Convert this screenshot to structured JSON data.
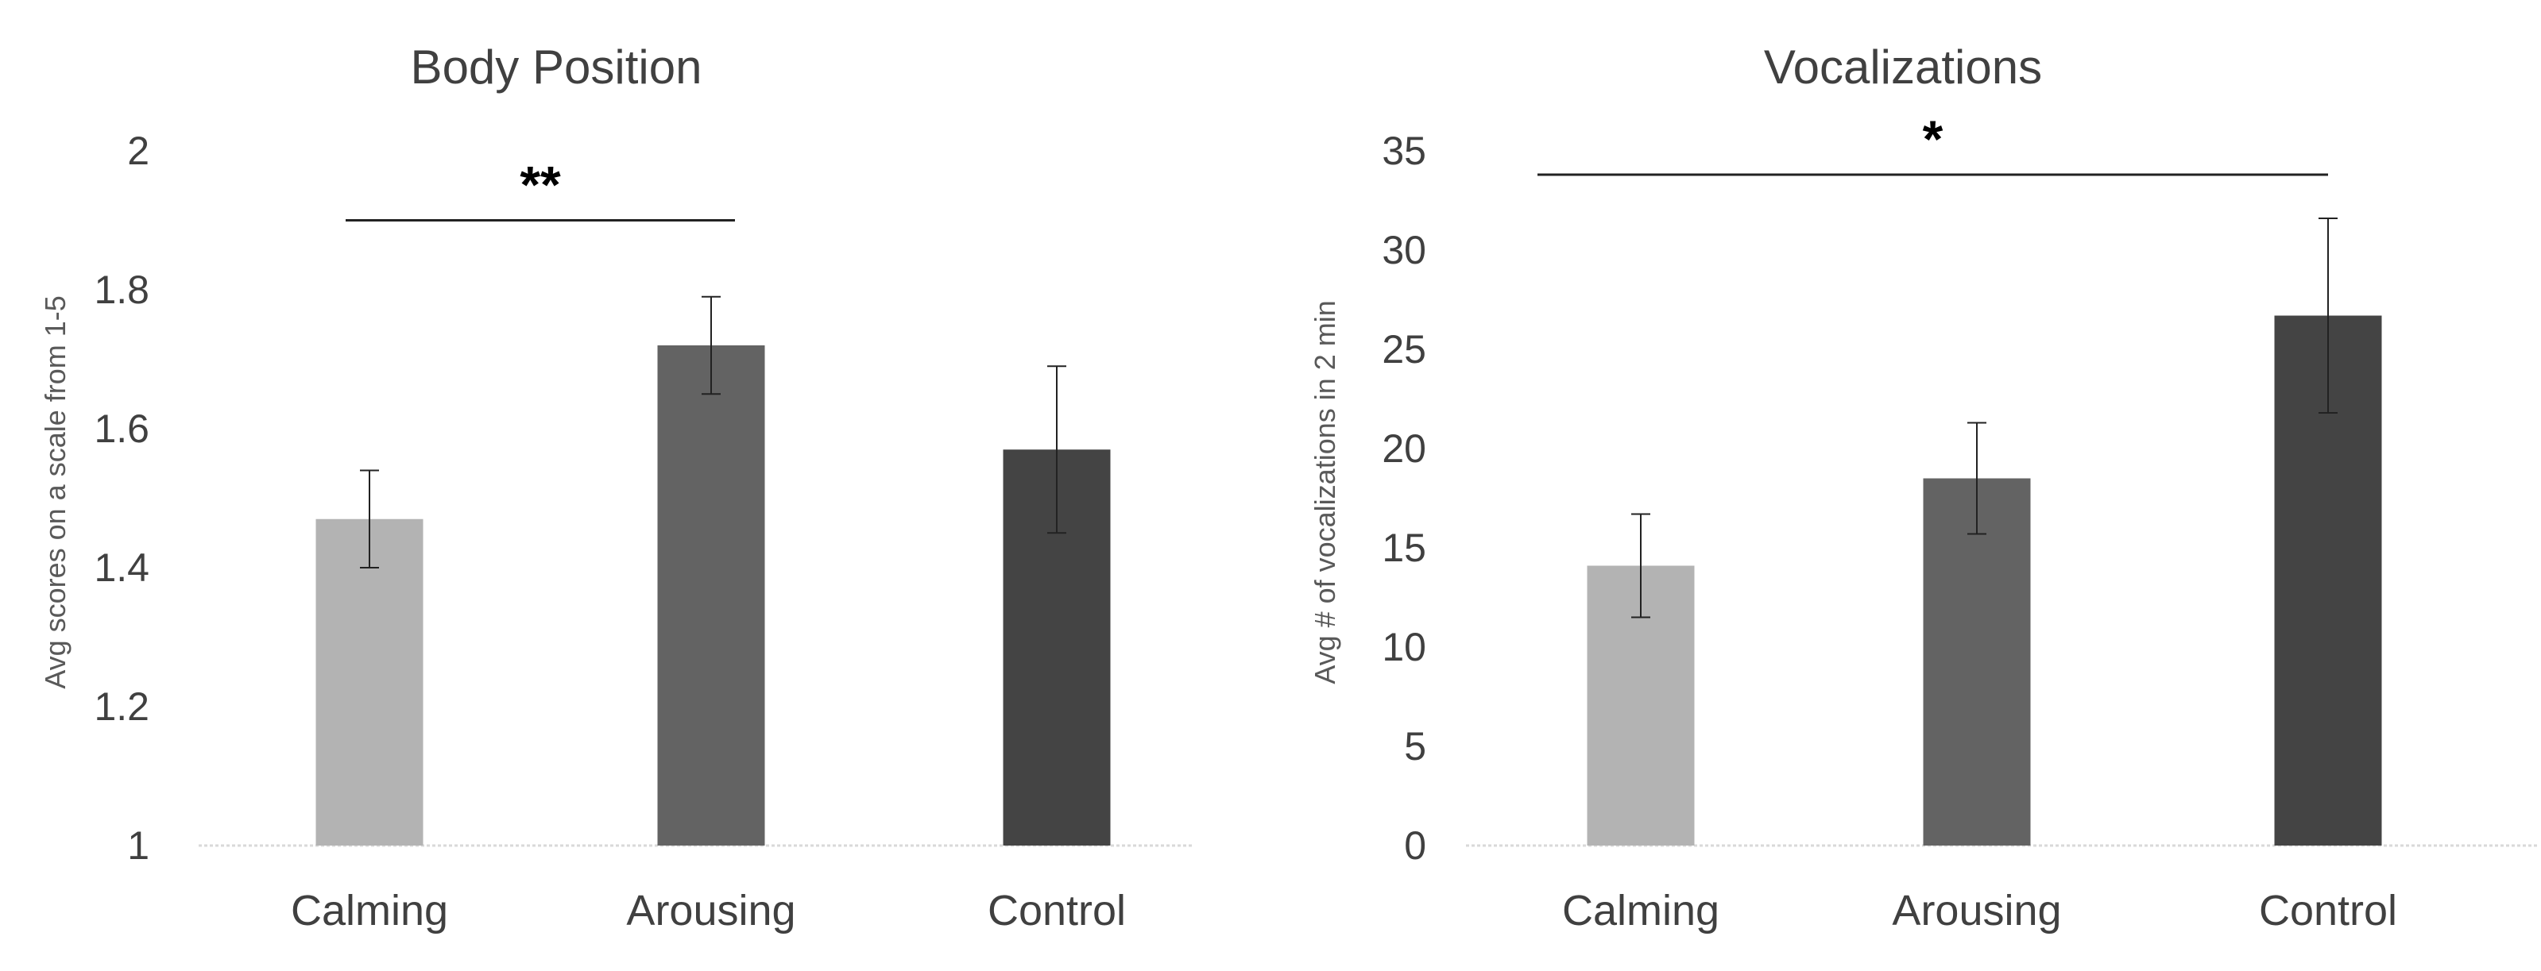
{
  "chart_data": [
    {
      "type": "bar",
      "title": "Body Position",
      "xlabel": "",
      "ylabel": "Avg scores on a scale from 1-5",
      "categories": [
        "Calming",
        "Arousing",
        "Control"
      ],
      "values": [
        1.47,
        1.72,
        1.57
      ],
      "error": [
        0.07,
        0.07,
        0.12
      ],
      "ylim": [
        1,
        2
      ],
      "yticks": [
        "1",
        "1.2",
        "1.4",
        "1.6",
        "1.8",
        "2"
      ],
      "ytick_values": [
        1,
        1.2,
        1.4,
        1.6,
        1.8,
        2
      ],
      "bar_colors": [
        "#b3b3b3",
        "#636363",
        "#444444"
      ],
      "grid": false,
      "significance": {
        "from": 0,
        "to": 1,
        "label": "**",
        "y": 1.9
      }
    },
    {
      "type": "bar",
      "title": "Vocalizations",
      "xlabel": "",
      "ylabel": "Avg # of vocalizations in 2 min",
      "categories": [
        "Calming",
        "Arousing",
        "Control"
      ],
      "values": [
        14.1,
        18.5,
        26.7
      ],
      "error": [
        2.6,
        2.8,
        4.9
      ],
      "ylim": [
        0,
        35
      ],
      "yticks": [
        "0",
        "5",
        "10",
        "15",
        "20",
        "25",
        "30",
        "35"
      ],
      "ytick_values": [
        0,
        5,
        10,
        15,
        20,
        25,
        30,
        35
      ],
      "bar_colors": [
        "#b3b3b3",
        "#636363",
        "#444444"
      ],
      "grid": false,
      "significance": {
        "from": 0,
        "to": 2,
        "label": "*",
        "y": 33.8
      }
    }
  ]
}
